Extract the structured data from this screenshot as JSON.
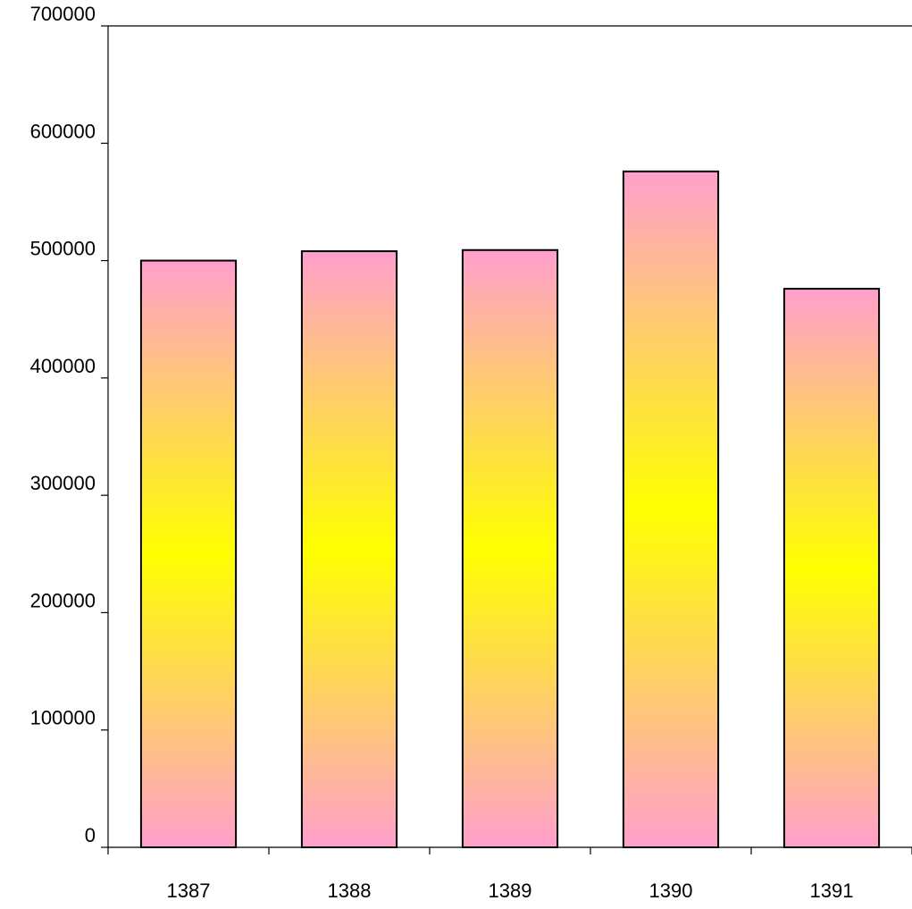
{
  "chart_data": {
    "type": "bar",
    "categories": [
      "1387",
      "1388",
      "1389",
      "1390",
      "1391"
    ],
    "values": [
      500000,
      508000,
      509000,
      576000,
      476000
    ],
    "title": "",
    "xlabel": "",
    "ylabel": "",
    "ylim": [
      0,
      700000
    ],
    "yticks": [
      0,
      100000,
      200000,
      300000,
      400000,
      500000,
      600000,
      700000
    ],
    "ytick_labels": [
      "0",
      "100000",
      "200000",
      "300000",
      "400000",
      "500000",
      "600000",
      "700000"
    ],
    "grid": false,
    "legend": "none",
    "colors": {
      "bar_edge": "#FF9FCC",
      "bar_center": "#FFFF00",
      "bar_outline": "#000000",
      "axis": "#000000"
    }
  }
}
